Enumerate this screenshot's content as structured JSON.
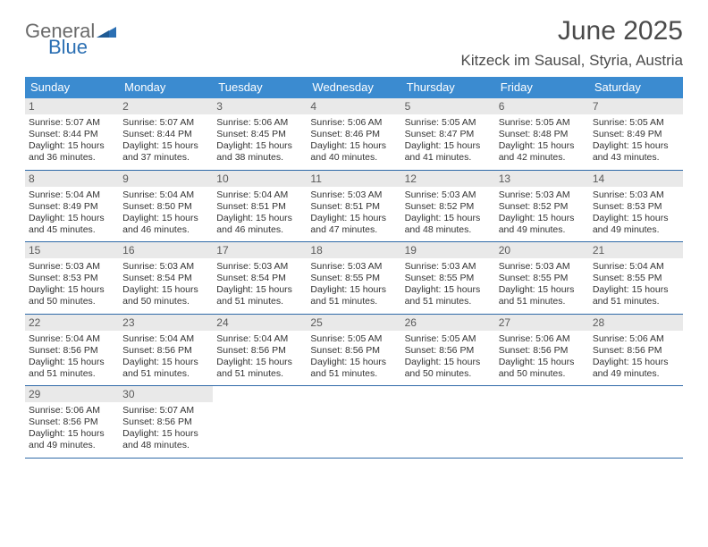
{
  "colors": {
    "header_bg": "#3b8bd0",
    "header_text": "#ffffff",
    "daynum_bg": "#e9e9e9",
    "daynum_text": "#5a5a5a",
    "body_text": "#333333",
    "rule": "#2f6aa8",
    "logo_gray": "#6a6a6a",
    "logo_blue": "#2b6fb3",
    "title_text": "#4a4a4a",
    "page_bg": "#ffffff"
  },
  "typography": {
    "title_fontsize_pt": 23,
    "location_fontsize_pt": 13,
    "weekday_fontsize_pt": 10,
    "daynum_fontsize_pt": 9,
    "cell_fontsize_pt": 8,
    "font_family": "Arial"
  },
  "logo": {
    "text1": "General",
    "text2": "Blue"
  },
  "title": "June 2025",
  "location": "Kitzeck im Sausal, Styria, Austria",
  "weekdays": [
    "Sunday",
    "Monday",
    "Tuesday",
    "Wednesday",
    "Thursday",
    "Friday",
    "Saturday"
  ],
  "weeks": [
    [
      {
        "n": "1",
        "sr": "Sunrise: 5:07 AM",
        "ss": "Sunset: 8:44 PM",
        "d1": "Daylight: 15 hours",
        "d2": "and 36 minutes."
      },
      {
        "n": "2",
        "sr": "Sunrise: 5:07 AM",
        "ss": "Sunset: 8:44 PM",
        "d1": "Daylight: 15 hours",
        "d2": "and 37 minutes."
      },
      {
        "n": "3",
        "sr": "Sunrise: 5:06 AM",
        "ss": "Sunset: 8:45 PM",
        "d1": "Daylight: 15 hours",
        "d2": "and 38 minutes."
      },
      {
        "n": "4",
        "sr": "Sunrise: 5:06 AM",
        "ss": "Sunset: 8:46 PM",
        "d1": "Daylight: 15 hours",
        "d2": "and 40 minutes."
      },
      {
        "n": "5",
        "sr": "Sunrise: 5:05 AM",
        "ss": "Sunset: 8:47 PM",
        "d1": "Daylight: 15 hours",
        "d2": "and 41 minutes."
      },
      {
        "n": "6",
        "sr": "Sunrise: 5:05 AM",
        "ss": "Sunset: 8:48 PM",
        "d1": "Daylight: 15 hours",
        "d2": "and 42 minutes."
      },
      {
        "n": "7",
        "sr": "Sunrise: 5:05 AM",
        "ss": "Sunset: 8:49 PM",
        "d1": "Daylight: 15 hours",
        "d2": "and 43 minutes."
      }
    ],
    [
      {
        "n": "8",
        "sr": "Sunrise: 5:04 AM",
        "ss": "Sunset: 8:49 PM",
        "d1": "Daylight: 15 hours",
        "d2": "and 45 minutes."
      },
      {
        "n": "9",
        "sr": "Sunrise: 5:04 AM",
        "ss": "Sunset: 8:50 PM",
        "d1": "Daylight: 15 hours",
        "d2": "and 46 minutes."
      },
      {
        "n": "10",
        "sr": "Sunrise: 5:04 AM",
        "ss": "Sunset: 8:51 PM",
        "d1": "Daylight: 15 hours",
        "d2": "and 46 minutes."
      },
      {
        "n": "11",
        "sr": "Sunrise: 5:03 AM",
        "ss": "Sunset: 8:51 PM",
        "d1": "Daylight: 15 hours",
        "d2": "and 47 minutes."
      },
      {
        "n": "12",
        "sr": "Sunrise: 5:03 AM",
        "ss": "Sunset: 8:52 PM",
        "d1": "Daylight: 15 hours",
        "d2": "and 48 minutes."
      },
      {
        "n": "13",
        "sr": "Sunrise: 5:03 AM",
        "ss": "Sunset: 8:52 PM",
        "d1": "Daylight: 15 hours",
        "d2": "and 49 minutes."
      },
      {
        "n": "14",
        "sr": "Sunrise: 5:03 AM",
        "ss": "Sunset: 8:53 PM",
        "d1": "Daylight: 15 hours",
        "d2": "and 49 minutes."
      }
    ],
    [
      {
        "n": "15",
        "sr": "Sunrise: 5:03 AM",
        "ss": "Sunset: 8:53 PM",
        "d1": "Daylight: 15 hours",
        "d2": "and 50 minutes."
      },
      {
        "n": "16",
        "sr": "Sunrise: 5:03 AM",
        "ss": "Sunset: 8:54 PM",
        "d1": "Daylight: 15 hours",
        "d2": "and 50 minutes."
      },
      {
        "n": "17",
        "sr": "Sunrise: 5:03 AM",
        "ss": "Sunset: 8:54 PM",
        "d1": "Daylight: 15 hours",
        "d2": "and 51 minutes."
      },
      {
        "n": "18",
        "sr": "Sunrise: 5:03 AM",
        "ss": "Sunset: 8:55 PM",
        "d1": "Daylight: 15 hours",
        "d2": "and 51 minutes."
      },
      {
        "n": "19",
        "sr": "Sunrise: 5:03 AM",
        "ss": "Sunset: 8:55 PM",
        "d1": "Daylight: 15 hours",
        "d2": "and 51 minutes."
      },
      {
        "n": "20",
        "sr": "Sunrise: 5:03 AM",
        "ss": "Sunset: 8:55 PM",
        "d1": "Daylight: 15 hours",
        "d2": "and 51 minutes."
      },
      {
        "n": "21",
        "sr": "Sunrise: 5:04 AM",
        "ss": "Sunset: 8:55 PM",
        "d1": "Daylight: 15 hours",
        "d2": "and 51 minutes."
      }
    ],
    [
      {
        "n": "22",
        "sr": "Sunrise: 5:04 AM",
        "ss": "Sunset: 8:56 PM",
        "d1": "Daylight: 15 hours",
        "d2": "and 51 minutes."
      },
      {
        "n": "23",
        "sr": "Sunrise: 5:04 AM",
        "ss": "Sunset: 8:56 PM",
        "d1": "Daylight: 15 hours",
        "d2": "and 51 minutes."
      },
      {
        "n": "24",
        "sr": "Sunrise: 5:04 AM",
        "ss": "Sunset: 8:56 PM",
        "d1": "Daylight: 15 hours",
        "d2": "and 51 minutes."
      },
      {
        "n": "25",
        "sr": "Sunrise: 5:05 AM",
        "ss": "Sunset: 8:56 PM",
        "d1": "Daylight: 15 hours",
        "d2": "and 51 minutes."
      },
      {
        "n": "26",
        "sr": "Sunrise: 5:05 AM",
        "ss": "Sunset: 8:56 PM",
        "d1": "Daylight: 15 hours",
        "d2": "and 50 minutes."
      },
      {
        "n": "27",
        "sr": "Sunrise: 5:06 AM",
        "ss": "Sunset: 8:56 PM",
        "d1": "Daylight: 15 hours",
        "d2": "and 50 minutes."
      },
      {
        "n": "28",
        "sr": "Sunrise: 5:06 AM",
        "ss": "Sunset: 8:56 PM",
        "d1": "Daylight: 15 hours",
        "d2": "and 49 minutes."
      }
    ],
    [
      {
        "n": "29",
        "sr": "Sunrise: 5:06 AM",
        "ss": "Sunset: 8:56 PM",
        "d1": "Daylight: 15 hours",
        "d2": "and 49 minutes."
      },
      {
        "n": "30",
        "sr": "Sunrise: 5:07 AM",
        "ss": "Sunset: 8:56 PM",
        "d1": "Daylight: 15 hours",
        "d2": "and 48 minutes."
      },
      {
        "empty": true
      },
      {
        "empty": true
      },
      {
        "empty": true
      },
      {
        "empty": true
      },
      {
        "empty": true
      }
    ]
  ]
}
